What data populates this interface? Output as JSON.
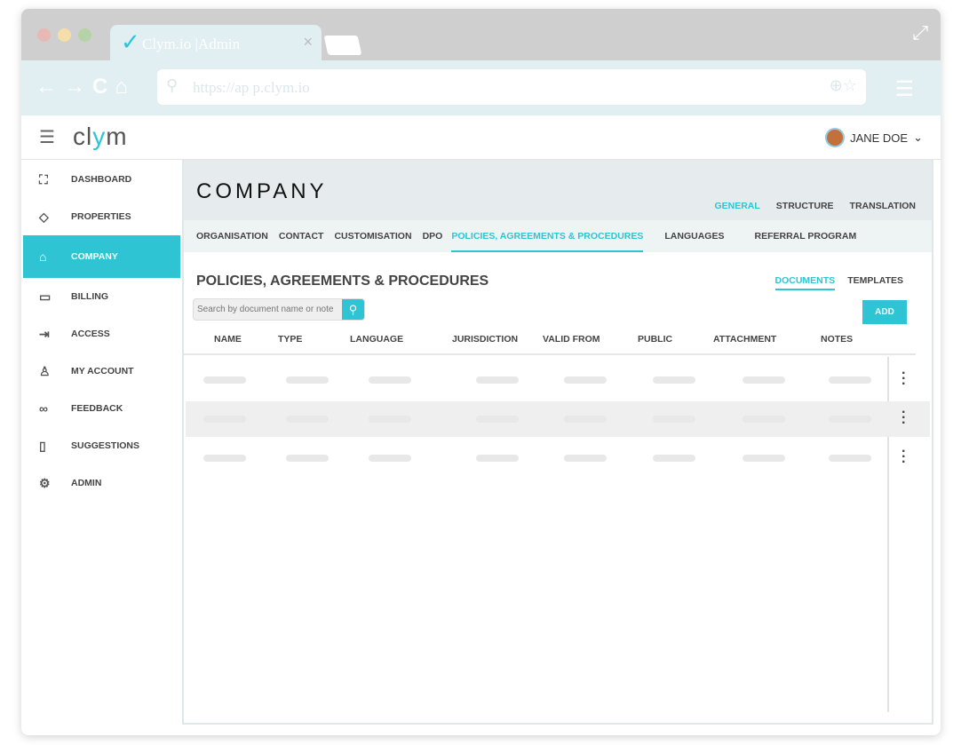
{
  "browser": {
    "tab_title": "Clym.io |Admin",
    "url": "https://ap p.clym.io"
  },
  "app": {
    "logo": "clym",
    "user": "JANE DOE"
  },
  "sidebar": {
    "items": [
      {
        "label": "DASHBOARD",
        "icon": "chart-icon"
      },
      {
        "label": "PROPERTIES",
        "icon": "layers-icon"
      },
      {
        "label": "COMPANY",
        "icon": "bank-icon",
        "active": true
      },
      {
        "label": "BILLING",
        "icon": "card-icon"
      },
      {
        "label": "ACCESS",
        "icon": "login-icon"
      },
      {
        "label": "MY ACCOUNT",
        "icon": "user-icon"
      },
      {
        "label": "FEEDBACK",
        "icon": "feedback-icon"
      },
      {
        "label": "SUGGESTIONS",
        "icon": "suggestion-icon"
      },
      {
        "label": "ADMIN",
        "icon": "gear-icon"
      }
    ]
  },
  "main": {
    "title": "COMPANY",
    "view_tabs": [
      "GENERAL",
      "STRUCTURE",
      "TRANSLATION"
    ],
    "sub_tabs": [
      "ORGANISATION",
      "CONTACT",
      "CUSTOMISATION",
      "DPO",
      "POLICIES, AGREEMENTS & PROCEDURES",
      "LANGUAGES",
      "REFERRAL PROGRAM"
    ],
    "section_title": "POLICIES, AGREEMENTS & PROCEDURES",
    "doc_tabs": [
      "DOCUMENTS",
      "TEMPLATES"
    ],
    "search_placeholder": "Search by document name or note",
    "add_label": "ADD",
    "columns": [
      "NAME",
      "TYPE",
      "LANGUAGE",
      "JURISDICTION",
      "VALID FROM",
      "PUBLIC",
      "ATTACHMENT",
      "NOTES"
    ]
  }
}
